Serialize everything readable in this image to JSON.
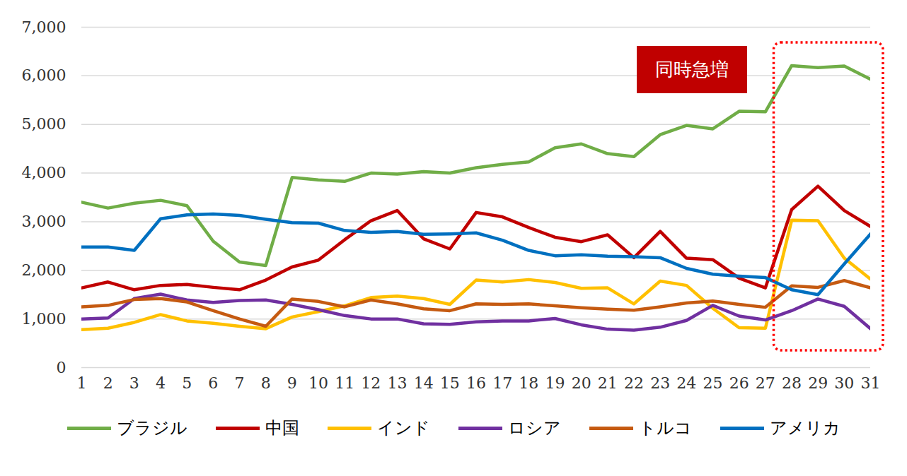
{
  "chart_data": {
    "type": "line",
    "x": [
      1,
      2,
      3,
      4,
      5,
      6,
      7,
      8,
      9,
      10,
      11,
      12,
      13,
      14,
      15,
      16,
      17,
      18,
      19,
      20,
      21,
      22,
      23,
      24,
      25,
      26,
      27,
      28,
      29,
      30,
      31
    ],
    "xlim": [
      1,
      31
    ],
    "xticks": [
      1,
      2,
      3,
      4,
      5,
      6,
      7,
      8,
      9,
      10,
      11,
      12,
      13,
      14,
      15,
      16,
      17,
      18,
      19,
      20,
      21,
      22,
      23,
      24,
      25,
      26,
      27,
      28,
      29,
      30,
      31
    ],
    "ylim": [
      0,
      7000
    ],
    "yticks": [
      0,
      1000,
      2000,
      3000,
      4000,
      5000,
      6000,
      7000
    ],
    "grid": true,
    "legend": "bottom",
    "annotations": [
      {
        "text": "同時急増",
        "x_range": [
          28,
          31
        ]
      }
    ],
    "series": [
      {
        "name": "ブラジル",
        "color": "#70ad47",
        "values": [
          3400,
          3280,
          3380,
          3440,
          3330,
          2600,
          2170,
          2100,
          3910,
          3860,
          3830,
          4000,
          3980,
          4030,
          4000,
          4110,
          4180,
          4230,
          4520,
          4600,
          4400,
          4340,
          4790,
          4980,
          4910,
          5270,
          5260,
          6210,
          6170,
          6200,
          5930
        ]
      },
      {
        "name": "中国",
        "color": "#c00000",
        "values": [
          1640,
          1760,
          1600,
          1690,
          1710,
          1650,
          1600,
          1800,
          2070,
          2210,
          2630,
          3020,
          3230,
          2650,
          2440,
          3190,
          3100,
          2880,
          2680,
          2590,
          2730,
          2260,
          2800,
          2250,
          2220,
          1840,
          1640,
          3250,
          3730,
          3230,
          2900
        ]
      },
      {
        "name": "インド",
        "color": "#ffc000",
        "values": [
          780,
          810,
          930,
          1090,
          960,
          910,
          850,
          800,
          1040,
          1150,
          1270,
          1440,
          1470,
          1420,
          1300,
          1800,
          1760,
          1810,
          1750,
          1630,
          1640,
          1310,
          1780,
          1690,
          1220,
          820,
          810,
          3030,
          3020,
          2250,
          1820
        ]
      },
      {
        "name": "ロシア",
        "color": "#7030a0",
        "values": [
          1000,
          1020,
          1420,
          1510,
          1390,
          1340,
          1380,
          1390,
          1300,
          1190,
          1070,
          1000,
          1000,
          900,
          890,
          940,
          960,
          960,
          1010,
          880,
          790,
          770,
          830,
          970,
          1280,
          1060,
          980,
          1170,
          1410,
          1260,
          800
        ]
      },
      {
        "name": "トルコ",
        "color": "#c55a11",
        "values": [
          1250,
          1280,
          1400,
          1420,
          1350,
          1170,
          1000,
          850,
          1410,
          1360,
          1250,
          1390,
          1310,
          1210,
          1170,
          1310,
          1300,
          1310,
          1270,
          1230,
          1200,
          1180,
          1250,
          1330,
          1370,
          1300,
          1240,
          1680,
          1650,
          1790,
          1640
        ]
      },
      {
        "name": "アメリカ",
        "color": "#0070c0",
        "values": [
          2480,
          2480,
          2410,
          3060,
          3140,
          3160,
          3130,
          3050,
          2980,
          2970,
          2820,
          2780,
          2800,
          2740,
          2750,
          2770,
          2620,
          2410,
          2300,
          2320,
          2290,
          2280,
          2260,
          2040,
          1920,
          1880,
          1850,
          1600,
          1500,
          2130,
          2750
        ]
      }
    ]
  }
}
